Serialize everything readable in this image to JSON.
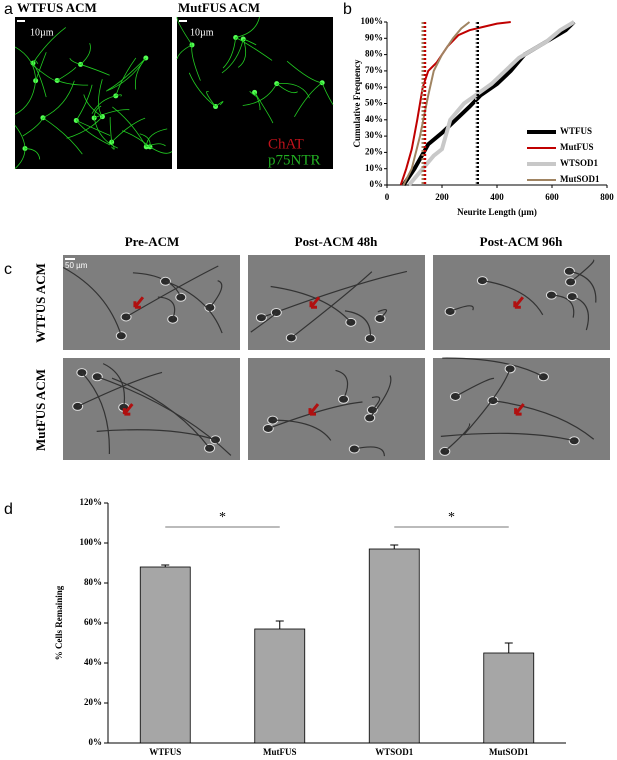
{
  "panel_labels": [
    "a",
    "b",
    "c",
    "d"
  ],
  "panel_a": {
    "titles": [
      "WTFUS ACM",
      "MutFUS ACM"
    ],
    "scale_labels": [
      "10µm",
      "10µm"
    ],
    "legend": [
      {
        "text": "ChAT",
        "color": "#c0121b"
      },
      {
        "text": "p75NTR",
        "color": "#22b022"
      }
    ]
  },
  "panel_c": {
    "columns": [
      "Pre-ACM",
      "Post-ACM 48h",
      "Post-ACM 96h"
    ],
    "rows": [
      "WTFUS ACM",
      "MutFUS ACM"
    ],
    "scale_label": "50 µm"
  },
  "chart_data": [
    {
      "type": "line",
      "xlabel": "Neurite Length (µm)",
      "ylabel": "Cumulative Frequency",
      "xlim": [
        0,
        800
      ],
      "xticks": [
        0,
        200,
        400,
        600,
        800
      ],
      "ylim": [
        0,
        100
      ],
      "yticks": [
        {
          "value": 0,
          "label": "0%"
        },
        {
          "value": 10,
          "label": "10%"
        },
        {
          "value": 20,
          "label": "20%"
        },
        {
          "value": 30,
          "label": "30%"
        },
        {
          "value": 40,
          "label": "40%"
        },
        {
          "value": 50,
          "label": "50%"
        },
        {
          "value": 60,
          "label": "60%"
        },
        {
          "value": 70,
          "label": "70%"
        },
        {
          "value": 80,
          "label": "80%"
        },
        {
          "value": 90,
          "label": "90%"
        },
        {
          "value": 100,
          "label": "100%"
        }
      ],
      "series": [
        {
          "name": "WTFUS",
          "color": "#000000",
          "width": 4,
          "x": [
            60,
            100,
            150,
            200,
            250,
            300,
            340,
            400,
            450,
            500,
            550,
            600,
            650,
            680
          ],
          "values": [
            0,
            10,
            25,
            32,
            40,
            48,
            55,
            62,
            70,
            80,
            85,
            90,
            95,
            100
          ]
        },
        {
          "name": "MutFUS",
          "color": "#c00000",
          "width": 2,
          "x": [
            50,
            70,
            90,
            110,
            130,
            150,
            180,
            220,
            260,
            300,
            350,
            400,
            450
          ],
          "values": [
            0,
            10,
            22,
            40,
            60,
            70,
            75,
            85,
            92,
            95,
            97,
            99,
            100
          ]
        },
        {
          "name": "WTSOD1",
          "color": "#c8c8c8",
          "width": 4,
          "x": [
            80,
            130,
            170,
            200,
            230,
            280,
            330,
            380,
            430,
            480,
            520,
            580,
            630,
            680
          ],
          "values": [
            0,
            10,
            18,
            22,
            40,
            50,
            56,
            62,
            70,
            78,
            82,
            88,
            95,
            100
          ]
        },
        {
          "name": "MutSOD1",
          "color": "#a08462",
          "width": 2,
          "x": [
            60,
            90,
            120,
            150,
            170,
            200,
            240,
            270,
            300
          ],
          "values": [
            0,
            10,
            30,
            55,
            70,
            80,
            90,
            96,
            100
          ]
        }
      ],
      "reference_lines": [
        {
          "x": 130,
          "color": "#a08462"
        },
        {
          "x": 138,
          "color": "#c00000"
        },
        {
          "x": 325,
          "color": "#c8c8c8"
        },
        {
          "x": 330,
          "color": "#000000"
        }
      ]
    },
    {
      "type": "bar",
      "ylabel": "% Cells Remaining",
      "color": "#a6a6a6",
      "categories": [
        "WTFUS",
        "MutFUS",
        "WTSOD1",
        "MutSOD1"
      ],
      "values": [
        88,
        57,
        97,
        45
      ],
      "errors": [
        1,
        4,
        2,
        5
      ],
      "ylim": [
        0,
        120
      ],
      "yticks": [
        {
          "value": 0,
          "label": "0%"
        },
        {
          "value": 20,
          "label": "20%"
        },
        {
          "value": 40,
          "label": "40%"
        },
        {
          "value": 60,
          "label": "60%"
        },
        {
          "value": 80,
          "label": "80%"
        },
        {
          "value": 100,
          "label": "100%"
        },
        {
          "value": 120,
          "label": "120%"
        }
      ],
      "significance": [
        {
          "label": "*",
          "pair": [
            "WTFUS",
            "MutFUS"
          ]
        },
        {
          "label": "*",
          "pair": [
            "WTSOD1",
            "MutSOD1"
          ]
        }
      ]
    }
  ]
}
